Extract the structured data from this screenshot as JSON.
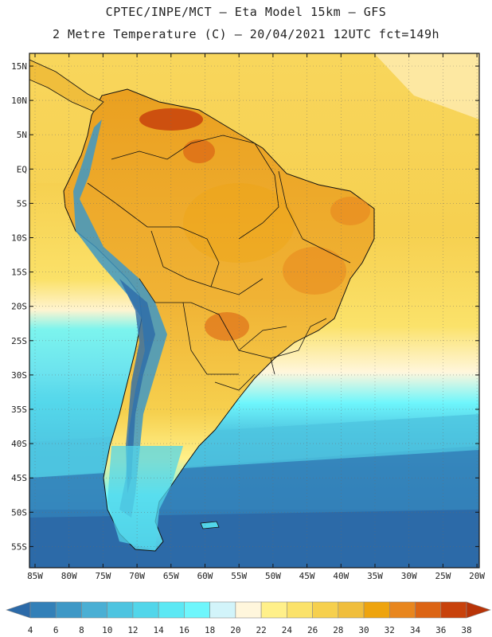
{
  "title": {
    "line1": "CPTEC/INPE/MCT –  Eta Model 15km – GFS",
    "line2": "2 Metre Temperature (C) – 20/04/2021 12UTC fct=149h"
  },
  "axes": {
    "lat_labels": [
      "15N",
      "10N",
      "5N",
      "EQ",
      "5S",
      "10S",
      "15S",
      "20S",
      "25S",
      "30S",
      "35S",
      "40S",
      "45S",
      "50S",
      "55S"
    ],
    "lon_labels": [
      "85W",
      "80W",
      "75W",
      "70W",
      "65W",
      "60W",
      "55W",
      "50W",
      "45W",
      "40W",
      "35W",
      "30W",
      "25W",
      "20W"
    ]
  },
  "colorbar": {
    "labels": [
      "4",
      "6",
      "8",
      "10",
      "12",
      "14",
      "16",
      "18",
      "20",
      "22",
      "24",
      "26",
      "28",
      "30",
      "32",
      "34",
      "36",
      "38"
    ],
    "colors": [
      "#2c6aa8",
      "#3380b8",
      "#3e98c6",
      "#4aafd4",
      "#4ec4e0",
      "#52d6ea",
      "#5ce8f4",
      "#6ef6fc",
      "#d2f4fa",
      "#fff6dc",
      "#fff08a",
      "#fbe26a",
      "#f6d04e",
      "#f0be3c",
      "#eea40e",
      "#e8861e",
      "#dc6414",
      "#c8420c",
      "#b83408"
    ]
  },
  "colors": {
    "ocean_north": "#f6d050",
    "land_hot": "#eea40e",
    "ocean_south": "#2c6aa8",
    "andes": "#3e98c6",
    "border": "#111111"
  }
}
